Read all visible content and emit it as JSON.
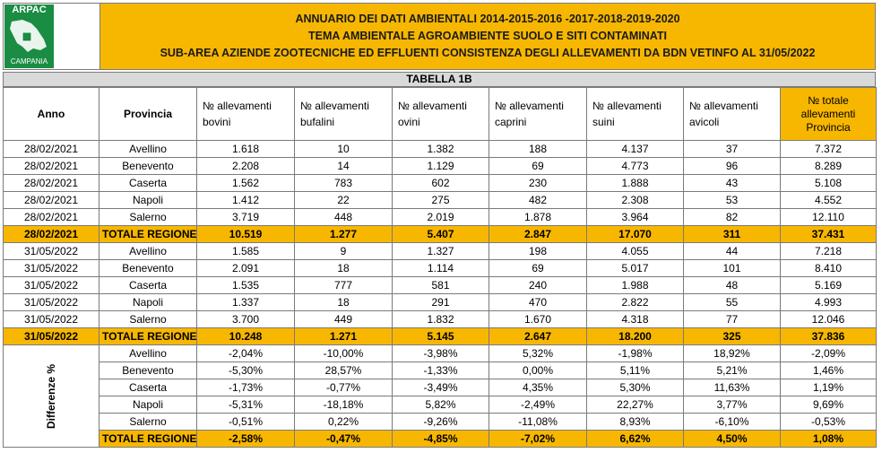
{
  "logo": {
    "top": "ARPAC",
    "bottom": "CAMPANIA",
    "colors": {
      "green": "#1a8c43",
      "white": "#ffffff"
    }
  },
  "header": {
    "line1": "ANNUARIO DEI DATI AMBIENTALI 2014-2015-2016 -2017-2018-2019-2020",
    "line2": "TEMA AMBIENTALE AGROAMBIENTE SUOLO E SITI CONTAMINATI",
    "line3": "SUB-AREA AZIENDE ZOOTECNICHE ED EFFLUENTI CONSISTENZA DEGLI ALLEVAMENTI DA BDN VETINFO AL 31/05/2022",
    "bg_color": "#f7b700"
  },
  "subtitle": "TABELLA 1B",
  "columns": {
    "anno": "Anno",
    "provincia": "Provincia",
    "bovini_l1": "№ allevamenti",
    "bovini_l2": "bovini",
    "bufalini_l1": "№ allevamenti",
    "bufalini_l2": "bufalini",
    "ovini_l1": "№ allevamenti",
    "ovini_l2": "ovini",
    "caprini_l1": "№ allevamenti",
    "caprini_l2": "caprini",
    "suini_l1": "№ allevamenti",
    "suini_l2": "suini",
    "avicoli_l1": "№ allevamenti",
    "avicoli_l2": "avicoli",
    "totale_l1": "№ totale",
    "totale_l2": "allevamenti",
    "totale_l3": "Provincia"
  },
  "group2021": [
    [
      "28/02/2021",
      "Avellino",
      "1.618",
      "10",
      "1.382",
      "188",
      "4.137",
      "37",
      "7.372"
    ],
    [
      "28/02/2021",
      "Benevento",
      "2.208",
      "14",
      "1.129",
      "69",
      "4.773",
      "96",
      "8.289"
    ],
    [
      "28/02/2021",
      "Caserta",
      "1.562",
      "783",
      "602",
      "230",
      "1.888",
      "43",
      "5.108"
    ],
    [
      "28/02/2021",
      "Napoli",
      "1.412",
      "22",
      "275",
      "482",
      "2.308",
      "53",
      "4.552"
    ],
    [
      "28/02/2021",
      "Salerno",
      "3.719",
      "448",
      "2.019",
      "1.878",
      "3.964",
      "82",
      "12.110"
    ]
  ],
  "total2021": [
    "28/02/2021",
    "TOTALE REGIONE",
    "10.519",
    "1.277",
    "5.407",
    "2.847",
    "17.070",
    "311",
    "37.431"
  ],
  "group2022": [
    [
      "31/05/2022",
      "Avellino",
      "1.585",
      "9",
      "1.327",
      "198",
      "4.055",
      "44",
      "7.218"
    ],
    [
      "31/05/2022",
      "Benevento",
      "2.091",
      "18",
      "1.114",
      "69",
      "5.017",
      "101",
      "8.410"
    ],
    [
      "31/05/2022",
      "Caserta",
      "1.535",
      "777",
      "581",
      "240",
      "1.988",
      "48",
      "5.169"
    ],
    [
      "31/05/2022",
      "Napoli",
      "1.337",
      "18",
      "291",
      "470",
      "2.822",
      "55",
      "4.993"
    ],
    [
      "31/05/2022",
      "Salerno",
      "3.700",
      "449",
      "1.832",
      "1.670",
      "4.318",
      "77",
      "12.046"
    ]
  ],
  "total2022": [
    "31/05/2022",
    "TOTALE REGIONE",
    "10.248",
    "1.271",
    "5.145",
    "2.647",
    "18.200",
    "325",
    "37.836"
  ],
  "diff_label": "Differenze %",
  "diff_rows": [
    [
      "Avellino",
      "-2,04%",
      "-10,00%",
      "-3,98%",
      "5,32%",
      "-1,98%",
      "18,92%",
      "-2,09%"
    ],
    [
      "Benevento",
      "-5,30%",
      "28,57%",
      "-1,33%",
      "0,00%",
      "5,11%",
      "5,21%",
      "1,46%"
    ],
    [
      "Caserta",
      "-1,73%",
      "-0,77%",
      "-3,49%",
      "4,35%",
      "5,30%",
      "11,63%",
      "1,19%"
    ],
    [
      "Napoli",
      "-5,31%",
      "-18,18%",
      "5,82%",
      "-2,49%",
      "22,27%",
      "3,77%",
      "9,69%"
    ],
    [
      "Salerno",
      "-0,51%",
      "0,22%",
      "-9,26%",
      "-11,08%",
      "8,93%",
      "-6,10%",
      "-0,53%"
    ]
  ],
  "diff_total": [
    "TOTALE REGIONE",
    "-2,58%",
    "-0,47%",
    "-4,85%",
    "-7,02%",
    "6,62%",
    "4,50%",
    "1,08%"
  ]
}
